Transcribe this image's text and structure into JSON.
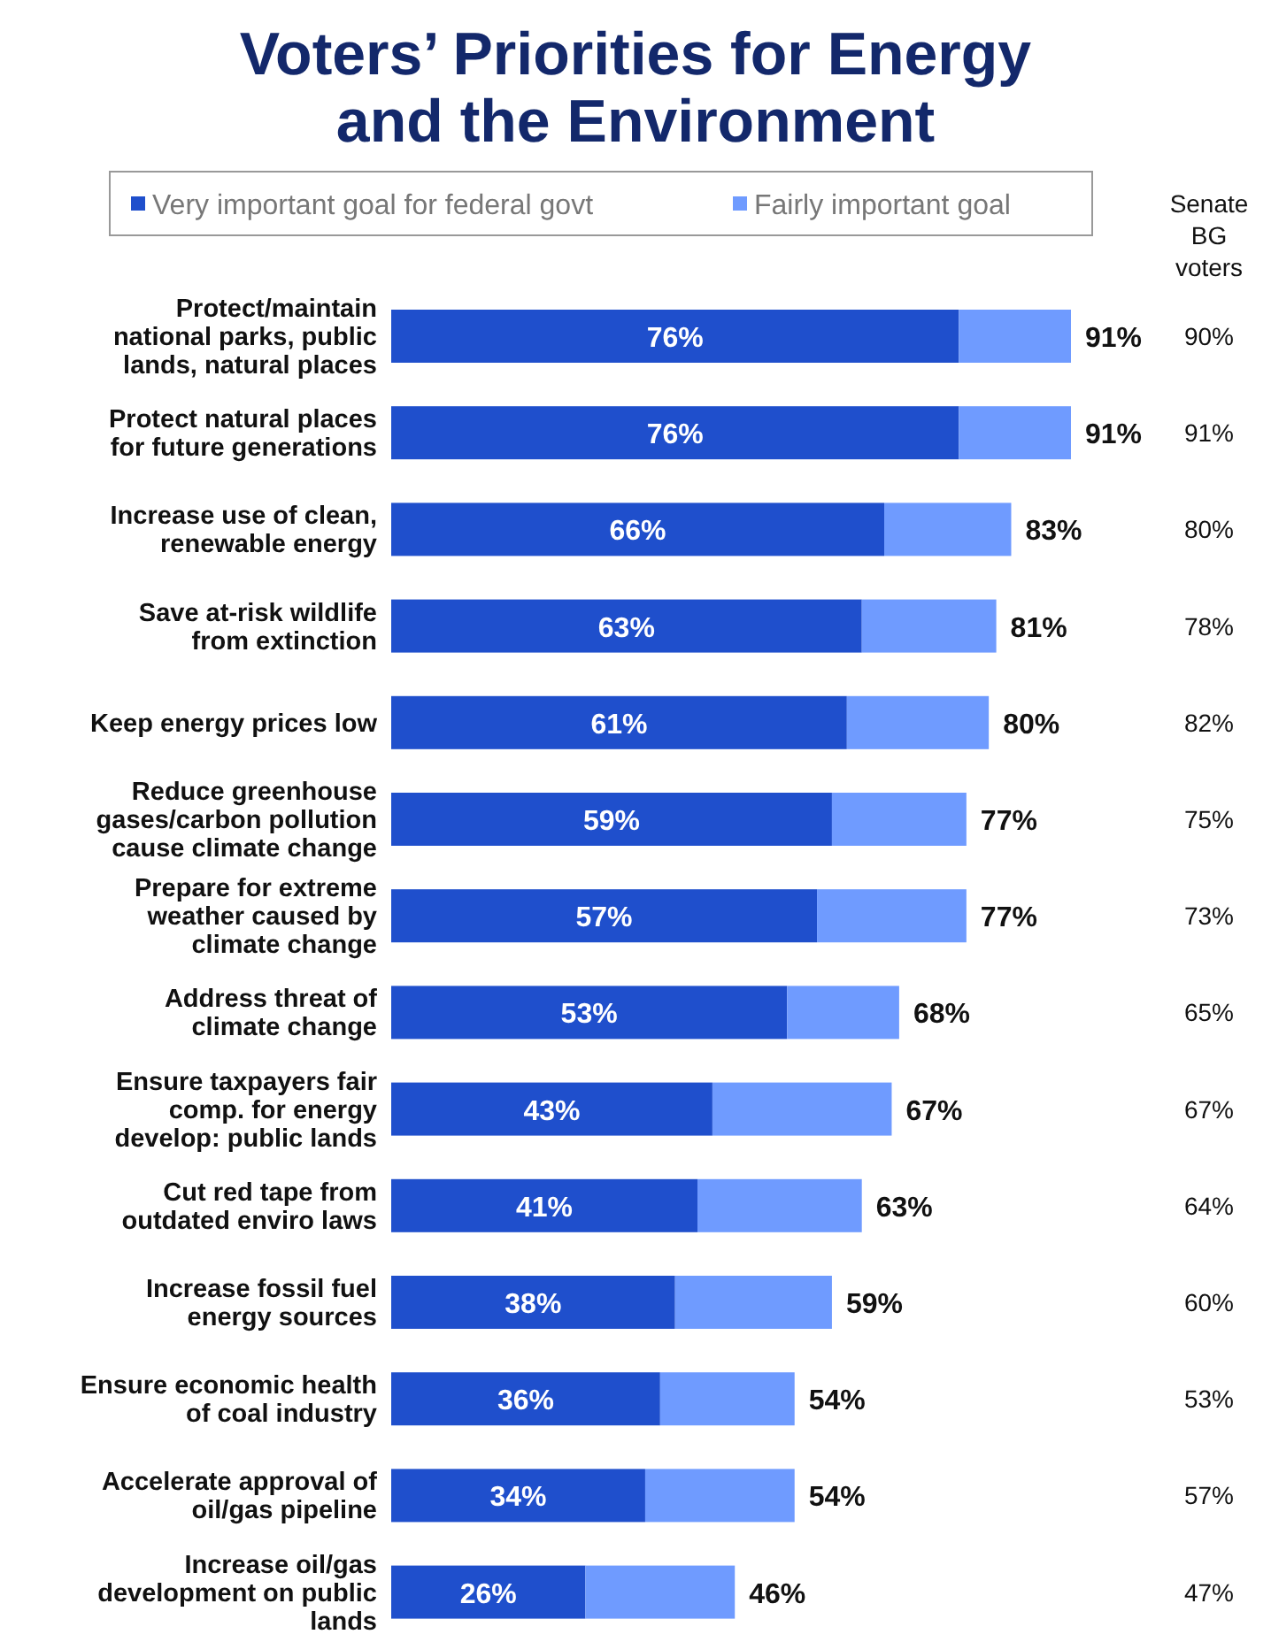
{
  "chart_data": {
    "type": "bar",
    "orientation": "horizontal",
    "stacked": true,
    "title": "Voters’ Priorities for Energy and the Environment",
    "categories": [
      "Protect/maintain national parks, public lands, natural places",
      "Protect natural places for future generations",
      "Increase use of clean, renewable energy",
      "Save at-risk wildlife from extinction",
      "Keep energy prices low",
      "Reduce greenhouse gases/carbon pollution cause climate change",
      "Prepare for extreme weather caused by climate change",
      "Address threat of climate change",
      "Ensure taxpayers fair comp. for energy develop: public lands",
      "Cut red tape from outdated enviro laws",
      "Increase fossil fuel energy sources",
      "Ensure economic health of coal industry",
      "Accelerate approval of oil/gas pipeline",
      "Increase oil/gas development on public lands"
    ],
    "series": [
      {
        "name": "Very important goal for federal govt",
        "color": "#1f4fcc",
        "values": [
          76,
          76,
          66,
          63,
          61,
          59,
          57,
          53,
          43,
          41,
          38,
          36,
          34,
          26
        ],
        "value_labels": [
          "76%",
          "76%",
          "66%",
          "63%",
          "61%",
          "59%",
          "57%",
          "53%",
          "43%",
          "41%",
          "38%",
          "36%",
          "34%",
          "26%"
        ]
      },
      {
        "name": "Fairly important goal",
        "color": "#6f9bff",
        "values": [
          15,
          15,
          17,
          18,
          19,
          18,
          20,
          15,
          24,
          22,
          21,
          18,
          20,
          20
        ]
      }
    ],
    "totals": [
      "91%",
      "91%",
      "83%",
      "81%",
      "80%",
      "77%",
      "77%",
      "68%",
      "67%",
      "63%",
      "59%",
      "54%",
      "54%",
      "46%"
    ],
    "legend": "top",
    "annotations": [
      "Senate BG voters",
      "90%",
      "91%",
      "80%",
      "78%",
      "82%",
      "75%",
      "73%",
      "65%",
      "67%",
      "64%",
      "60%",
      "53%",
      "57%",
      "47%"
    ]
  }
}
